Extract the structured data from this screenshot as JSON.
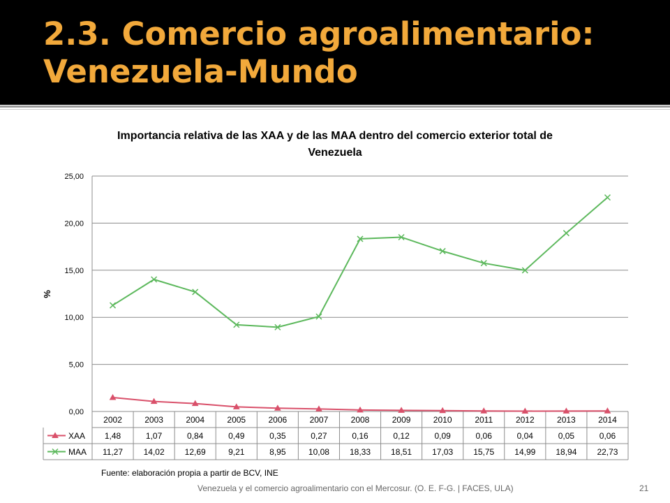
{
  "slide": {
    "title": "2.3. Comercio agroalimentario: Venezuela-Mundo",
    "source": "Fuente: elaboración propia a partir de BCV, INE",
    "footer": "Venezuela y el comercio agroalimentario con el Mercosur. (O. E. F-G. | FACES, ULA)",
    "number": "21"
  },
  "chart_data": {
    "type": "line",
    "title": "Importancia relativa de las XAA y de las MAA dentro del comercio exterior total de Venezuela",
    "xlabel": "",
    "ylabel": "%",
    "ylim": [
      0,
      25
    ],
    "yticks": [
      "0,00",
      "5,00",
      "10,00",
      "15,00",
      "20,00",
      "25,00"
    ],
    "grid": true,
    "legend": "data-table",
    "categories": [
      "2002",
      "2003",
      "2004",
      "2005",
      "2006",
      "2007",
      "2008",
      "2009",
      "2010",
      "2011",
      "2012",
      "2013",
      "2014"
    ],
    "series": [
      {
        "name": "XAA",
        "color": "#d9506a",
        "marker": "triangle",
        "values": [
          1.48,
          1.07,
          0.84,
          0.49,
          0.35,
          0.27,
          0.16,
          0.12,
          0.09,
          0.06,
          0.04,
          0.05,
          0.06
        ],
        "labels": [
          "1,48",
          "1,07",
          "0,84",
          "0,49",
          "0,35",
          "0,27",
          "0,16",
          "0,12",
          "0,09",
          "0,06",
          "0,04",
          "0,05",
          "0,06"
        ]
      },
      {
        "name": "MAA",
        "color": "#5cb85c",
        "marker": "x",
        "values": [
          11.27,
          14.02,
          12.69,
          9.21,
          8.95,
          10.08,
          18.33,
          18.51,
          17.03,
          15.75,
          14.99,
          18.94,
          22.73
        ],
        "labels": [
          "11,27",
          "14,02",
          "12,69",
          "9,21",
          "8,95",
          "10,08",
          "18,33",
          "18,51",
          "17,03",
          "15,75",
          "14,99",
          "18,94",
          "22,73"
        ]
      }
    ]
  }
}
